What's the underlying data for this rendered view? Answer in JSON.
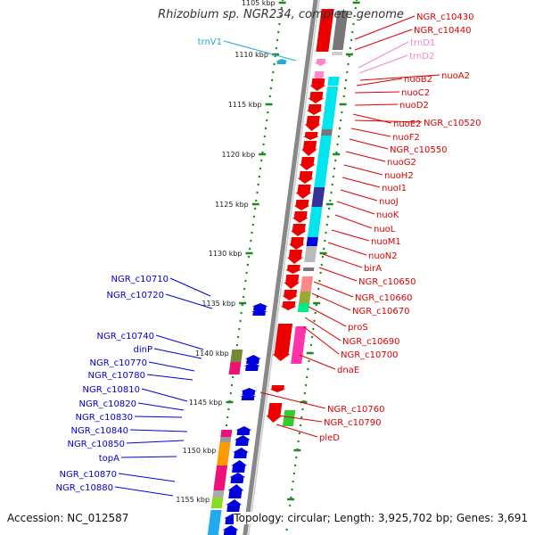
{
  "title": "Rhizobium sp. NGR234, complete genome",
  "footer": {
    "accession": "Accession: NC_012587",
    "summary": "Topology: circular; Length: 3,925,702 bp; Genes: 3,691"
  },
  "colors": {
    "backbone": "#888888",
    "ruler_dots": "#1c8a1c",
    "ruler_text": "#222222",
    "label_forward": "#dd0000",
    "label_reverse": "#0000dd",
    "label_trna_forward": "#ee88cc",
    "label_trna_reverse": "#22aacc"
  },
  "ruler": [
    {
      "label": "1105 kbp"
    },
    {
      "label": "1110 kbp"
    },
    {
      "label": "1115 kbp"
    },
    {
      "label": "1120 kbp"
    },
    {
      "label": "1125 kbp"
    },
    {
      "label": "1130 kbp"
    },
    {
      "label": "1135 kbp"
    },
    {
      "label": "1140 kbp"
    },
    {
      "label": "1145 kbp"
    },
    {
      "label": "1150 kbp"
    },
    {
      "label": "1155 kbp"
    }
  ],
  "right_labels": [
    {
      "text": "NGR_c10430",
      "color": "#dd0000"
    },
    {
      "text": "NGR_c10440",
      "color": "#dd0000"
    },
    {
      "text": "trnD1",
      "color": "#ee88cc"
    },
    {
      "text": "trnD2",
      "color": "#ee88cc"
    },
    {
      "text": "nuoA2",
      "color": "#dd0000"
    },
    {
      "text": "nuoB2",
      "color": "#dd0000"
    },
    {
      "text": "nuoC2",
      "color": "#dd0000"
    },
    {
      "text": "nuoD2",
      "color": "#dd0000"
    },
    {
      "text": "nuoE2",
      "color": "#dd0000"
    },
    {
      "text": "NGR_c10520",
      "color": "#dd0000"
    },
    {
      "text": "nuoF2",
      "color": "#dd0000"
    },
    {
      "text": "NGR_c10550",
      "color": "#dd0000"
    },
    {
      "text": "nuoG2",
      "color": "#dd0000"
    },
    {
      "text": "nuoH2",
      "color": "#dd0000"
    },
    {
      "text": "nuoI1",
      "color": "#dd0000"
    },
    {
      "text": "nuoJ",
      "color": "#dd0000"
    },
    {
      "text": "nuoK",
      "color": "#dd0000"
    },
    {
      "text": "nuoL",
      "color": "#dd0000"
    },
    {
      "text": "nuoM1",
      "color": "#dd0000"
    },
    {
      "text": "nuoN2",
      "color": "#dd0000"
    },
    {
      "text": "birA",
      "color": "#dd0000"
    },
    {
      "text": "NGR_c10650",
      "color": "#dd0000"
    },
    {
      "text": "NGR_c10660",
      "color": "#dd0000"
    },
    {
      "text": "NGR_c10670",
      "color": "#dd0000"
    },
    {
      "text": "proS",
      "color": "#dd0000"
    },
    {
      "text": "NGR_c10690",
      "color": "#dd0000"
    },
    {
      "text": "NGR_c10700",
      "color": "#dd0000"
    },
    {
      "text": "dnaE",
      "color": "#dd0000"
    },
    {
      "text": "NGR_c10760",
      "color": "#dd0000"
    },
    {
      "text": "NGR_c10790",
      "color": "#dd0000"
    },
    {
      "text": "pleD",
      "color": "#dd0000"
    }
  ],
  "left_labels": [
    {
      "text": "trnV1",
      "color": "#22aacc"
    },
    {
      "text": "NGR_c10710",
      "color": "#0000dd"
    },
    {
      "text": "NGR_c10720",
      "color": "#0000dd"
    },
    {
      "text": "NGR_c10740",
      "color": "#0000dd"
    },
    {
      "text": "dinP",
      "color": "#0000dd"
    },
    {
      "text": "NGR_c10770",
      "color": "#0000dd"
    },
    {
      "text": "NGR_c10780",
      "color": "#0000dd"
    },
    {
      "text": "NGR_c10810",
      "color": "#0000dd"
    },
    {
      "text": "NGR_c10820",
      "color": "#0000dd"
    },
    {
      "text": "NGR_c10830",
      "color": "#0000dd"
    },
    {
      "text": "NGR_c10840",
      "color": "#0000dd"
    },
    {
      "text": "NGR_c10850",
      "color": "#0000dd"
    },
    {
      "text": "topA",
      "color": "#0000dd"
    },
    {
      "text": "NGR_c10870",
      "color": "#0000dd"
    },
    {
      "text": "NGR_c10880",
      "color": "#0000dd"
    }
  ]
}
